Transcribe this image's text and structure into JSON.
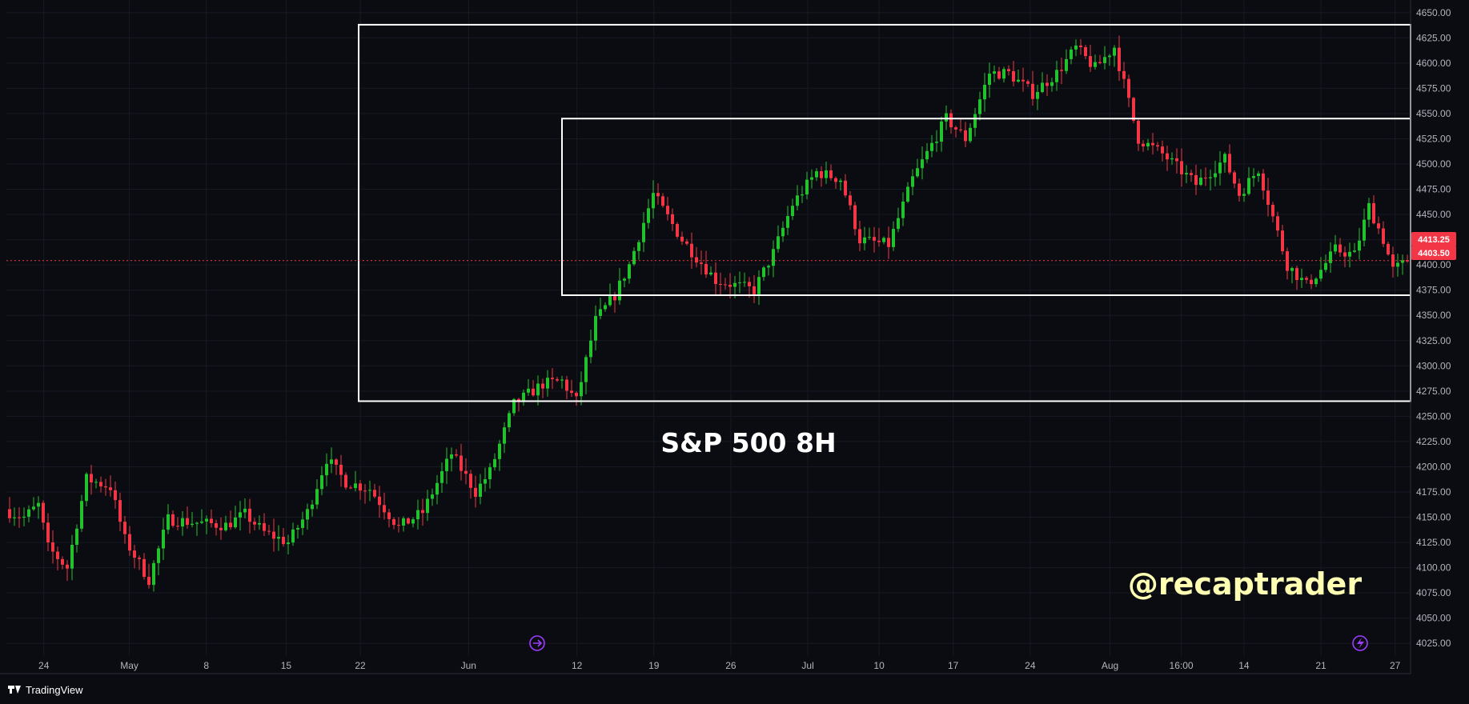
{
  "chart_data": {
    "type": "candlestick",
    "title": "S&P 500 8H",
    "watermark": "@recaptrader",
    "brand": "TradingView",
    "ylim": [
      4012.5,
      4662.5
    ],
    "y_ticks": [
      4025,
      4050,
      4075,
      4100,
      4125,
      4150,
      4175,
      4200,
      4225,
      4250,
      4275,
      4300,
      4325,
      4350,
      4375,
      4400,
      4425,
      4450,
      4475,
      4500,
      4525,
      4550,
      4575,
      4600,
      4625,
      4650
    ],
    "x_ticks": [
      "24",
      "May",
      "8",
      "15",
      "22",
      "Jun",
      "12",
      "19",
      "26",
      "Jul",
      "10",
      "17",
      "24",
      "Aug",
      "16:00",
      "14",
      "21",
      "27"
    ],
    "price_labels": [
      "4413.25",
      "4403.50"
    ],
    "current_price": 4403.5,
    "colors": {
      "up": "#22c22e",
      "down": "#f23645",
      "background": "#0b0c11",
      "box": "#ffffff",
      "price_line": "#f23645"
    },
    "boxes": [
      {
        "name": "outer-range",
        "start": "May 25",
        "end": "Aug 30",
        "top": 4638,
        "bottom": 4265
      },
      {
        "name": "inner-range",
        "start": "Jun 11",
        "end": "Aug 30",
        "top": 4545,
        "bottom": 4370
      }
    ],
    "close_path": [
      [
        0,
        4155
      ],
      [
        3,
        4150
      ],
      [
        6,
        4162
      ],
      [
        8,
        4120
      ],
      [
        12,
        4100
      ],
      [
        16,
        4188
      ],
      [
        21,
        4180
      ],
      [
        24,
        4128
      ],
      [
        29,
        4088
      ],
      [
        33,
        4148
      ],
      [
        38,
        4145
      ],
      [
        45,
        4142
      ],
      [
        49,
        4153
      ],
      [
        53,
        4135
      ],
      [
        58,
        4125
      ],
      [
        62,
        4155
      ],
      [
        66,
        4208
      ],
      [
        70,
        4185
      ],
      [
        75,
        4178
      ],
      [
        81,
        4140
      ],
      [
        86,
        4155
      ],
      [
        92,
        4213
      ],
      [
        97,
        4175
      ],
      [
        100,
        4195
      ],
      [
        105,
        4262
      ],
      [
        111,
        4282
      ],
      [
        115,
        4285
      ],
      [
        118,
        4265
      ],
      [
        122,
        4345
      ],
      [
        126,
        4370
      ],
      [
        129,
        4400
      ],
      [
        134,
        4470
      ],
      [
        140,
        4425
      ],
      [
        147,
        4385
      ],
      [
        155,
        4375
      ],
      [
        159,
        4412
      ],
      [
        163,
        4460
      ],
      [
        168,
        4492
      ],
      [
        173,
        4485
      ],
      [
        177,
        4425
      ],
      [
        183,
        4420
      ],
      [
        188,
        4485
      ],
      [
        195,
        4545
      ],
      [
        199,
        4525
      ],
      [
        204,
        4590
      ],
      [
        208,
        4590
      ],
      [
        213,
        4570
      ],
      [
        218,
        4590
      ],
      [
        222,
        4615
      ],
      [
        226,
        4595
      ],
      [
        230,
        4616
      ],
      [
        235,
        4525
      ],
      [
        240,
        4510
      ],
      [
        247,
        4480
      ],
      [
        253,
        4505
      ],
      [
        256,
        4470
      ],
      [
        260,
        4495
      ],
      [
        266,
        4400
      ],
      [
        270,
        4380
      ],
      [
        273,
        4395
      ],
      [
        276,
        4415
      ],
      [
        280,
        4410
      ],
      [
        283,
        4458
      ],
      [
        286,
        4425
      ],
      [
        288,
        4395
      ],
      [
        291,
        4403.5
      ]
    ],
    "num_candles": 292
  }
}
